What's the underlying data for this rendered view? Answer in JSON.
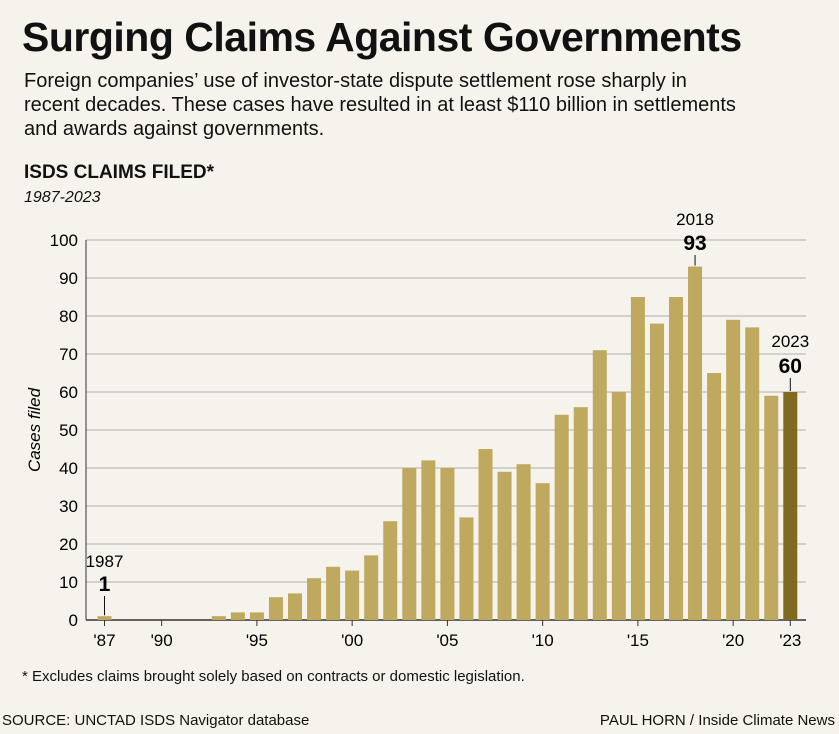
{
  "header": {
    "title": "Surging Claims Against Governments",
    "subtitle": "Foreign companies’ use of investor-state dispute settlement rose sharply in recent decades. These cases have resulted in at least $110 billion in settlements and awards against governments."
  },
  "chart_heading": "ISDS CLAIMS FILED*",
  "chart_range": "1987-2023",
  "footnote": "* Excludes claims brought solely based on contracts or domestic legislation.",
  "source": "SOURCE: UNCTAD ISDS Navigator database",
  "credit": "PAUL HORN / Inside Climate News",
  "colors": {
    "bar": "#bfa95e",
    "highlight_bar": "#7f6a1f",
    "background": "#f5f3ec",
    "grid": "#999999"
  },
  "chart_data": {
    "type": "bar",
    "title": "ISDS CLAIMS FILED*",
    "xlabel": "",
    "ylabel": "Cases filed",
    "ylim": [
      0,
      100
    ],
    "yticks": [
      0,
      10,
      20,
      30,
      40,
      50,
      60,
      70,
      80,
      90,
      100
    ],
    "grid": true,
    "x": [
      1987,
      1988,
      1989,
      1990,
      1991,
      1992,
      1993,
      1994,
      1995,
      1996,
      1997,
      1998,
      1999,
      2000,
      2001,
      2002,
      2003,
      2004,
      2005,
      2006,
      2007,
      2008,
      2009,
      2010,
      2011,
      2012,
      2013,
      2014,
      2015,
      2016,
      2017,
      2018,
      2019,
      2020,
      2021,
      2022,
      2023
    ],
    "values": [
      1,
      0,
      0,
      0,
      0,
      0,
      1,
      2,
      2,
      6,
      7,
      11,
      14,
      13,
      17,
      26,
      40,
      42,
      40,
      27,
      45,
      39,
      41,
      36,
      54,
      56,
      71,
      60,
      85,
      78,
      85,
      93,
      65,
      79,
      77,
      59,
      60
    ],
    "xtick_years": [
      1987,
      1990,
      1995,
      2000,
      2005,
      2010,
      2015,
      2020,
      2023
    ],
    "xtick_labels": [
      "'87",
      "'90",
      "'95",
      "'00",
      "'05",
      "'10",
      "'15",
      "'20",
      "'23"
    ],
    "highlight_year": 2023,
    "annotations": [
      {
        "year": 1987,
        "label": "1987",
        "value": "1"
      },
      {
        "year": 2018,
        "label": "2018",
        "value": "93"
      },
      {
        "year": 2023,
        "label": "2023",
        "value": "60"
      }
    ]
  }
}
